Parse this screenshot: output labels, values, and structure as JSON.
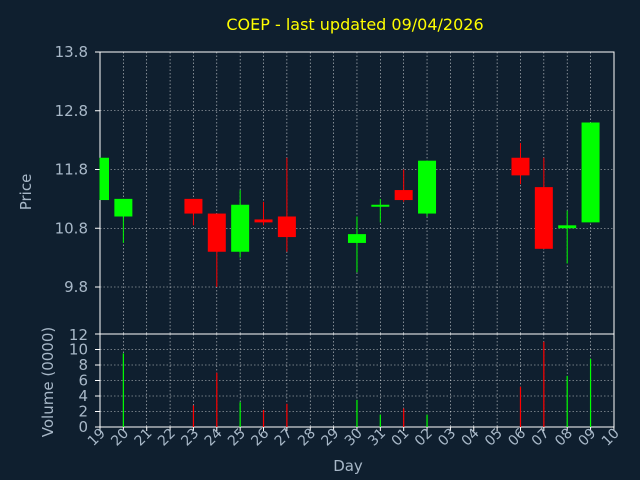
{
  "title": "COEP - last updated 09/04/2026",
  "colors": {
    "background": "#0f1f2f",
    "frame": "#ffffff",
    "grid": "#ffffff",
    "up": "#00ff00",
    "down": "#ff0000",
    "title": "#ffff00",
    "text": "#a8b8c8"
  },
  "chart_data": [
    {
      "type": "candlestick",
      "ylabel": "Price",
      "ylim": [
        9.0,
        13.8
      ],
      "yticks": [
        "13.8",
        "12.8",
        "11.8",
        "10.8",
        "9.8"
      ],
      "xlim": [
        0,
        22
      ],
      "grid": true,
      "categories": [
        "19",
        "20",
        "21",
        "22",
        "23",
        "24",
        "25",
        "26",
        "27",
        "28",
        "29",
        "30",
        "31",
        "01",
        "02",
        "03",
        "04",
        "05",
        "06",
        "07",
        "08",
        "09",
        "10"
      ],
      "candles": [
        {
          "x": 0,
          "open": 11.28,
          "high": 12.0,
          "low": 11.28,
          "close": 12.0
        },
        {
          "x": 1,
          "open": 11.0,
          "high": 11.3,
          "low": 10.55,
          "close": 11.3
        },
        {
          "x": 4,
          "open": 11.3,
          "high": 11.3,
          "low": 10.85,
          "close": 11.05
        },
        {
          "x": 5,
          "open": 11.05,
          "high": 11.05,
          "low": 9.8,
          "close": 10.4
        },
        {
          "x": 6,
          "open": 10.4,
          "high": 11.45,
          "low": 10.3,
          "close": 11.2
        },
        {
          "x": 7,
          "open": 10.95,
          "high": 11.25,
          "low": 10.85,
          "close": 10.9
        },
        {
          "x": 8,
          "open": 11.0,
          "high": 12.0,
          "low": 10.4,
          "close": 10.65
        },
        {
          "x": 11,
          "open": 10.55,
          "high": 11.0,
          "low": 10.05,
          "close": 10.7
        },
        {
          "x": 12,
          "open": 11.2,
          "high": 11.3,
          "low": 10.9,
          "close": 11.2
        },
        {
          "x": 13,
          "open": 11.45,
          "high": 11.8,
          "low": 11.25,
          "close": 11.28
        },
        {
          "x": 14,
          "open": 11.05,
          "high": 11.95,
          "low": 11.0,
          "close": 11.95
        },
        {
          "x": 18,
          "open": 12.0,
          "high": 12.25,
          "low": 11.55,
          "close": 11.7
        },
        {
          "x": 19,
          "open": 11.5,
          "high": 12.0,
          "low": 10.45,
          "close": 10.45
        },
        {
          "x": 20,
          "open": 10.8,
          "high": 11.1,
          "low": 10.2,
          "close": 10.85
        },
        {
          "x": 21,
          "open": 10.9,
          "high": 12.6,
          "low": 10.9,
          "close": 12.6
        }
      ]
    },
    {
      "type": "bar",
      "ylabel": "Volume (0000)",
      "xlabel": "Day",
      "ylim": [
        0,
        12
      ],
      "yticks": [
        "12",
        "10",
        "8",
        "6",
        "4",
        "2",
        "0"
      ],
      "xlim": [
        0,
        22
      ],
      "grid": true,
      "bars": [
        {
          "x": 1,
          "value": 9.5,
          "direction": "up"
        },
        {
          "x": 4,
          "value": 2.8,
          "direction": "down"
        },
        {
          "x": 5,
          "value": 7.0,
          "direction": "down"
        },
        {
          "x": 6,
          "value": 3.2,
          "direction": "up"
        },
        {
          "x": 7,
          "value": 2.2,
          "direction": "down"
        },
        {
          "x": 8,
          "value": 3.0,
          "direction": "down"
        },
        {
          "x": 11,
          "value": 3.5,
          "direction": "up"
        },
        {
          "x": 12,
          "value": 1.6,
          "direction": "up"
        },
        {
          "x": 13,
          "value": 2.4,
          "direction": "down"
        },
        {
          "x": 14,
          "value": 1.6,
          "direction": "up"
        },
        {
          "x": 18,
          "value": 5.2,
          "direction": "down"
        },
        {
          "x": 19,
          "value": 11.0,
          "direction": "down"
        },
        {
          "x": 20,
          "value": 6.6,
          "direction": "up"
        },
        {
          "x": 21,
          "value": 8.8,
          "direction": "up"
        }
      ]
    }
  ]
}
